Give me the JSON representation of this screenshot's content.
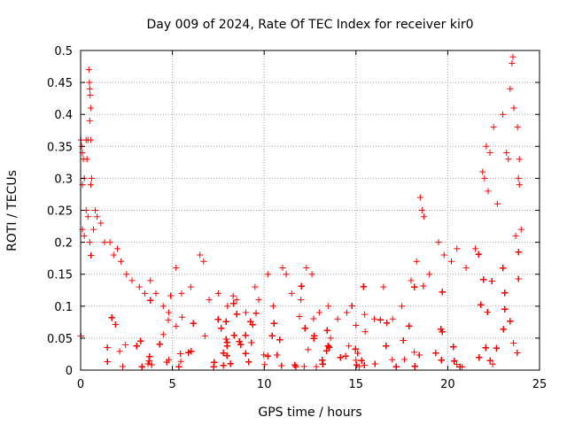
{
  "chart_data": {
    "type": "scatter",
    "title": "Day 009 of 2024, Rate Of TEC Index for receiver kir0",
    "xlabel": "GPS time / hours",
    "ylabel": "ROTI / TECUs",
    "xlim": [
      0,
      25
    ],
    "ylim": [
      0,
      0.5
    ],
    "xticks": [
      0,
      5,
      10,
      15,
      20,
      25
    ],
    "xtick_labels": [
      "0",
      "5",
      "10",
      "15",
      "20",
      "25"
    ],
    "yticks": [
      0,
      0.05,
      0.1,
      0.15,
      0.2,
      0.25,
      0.3,
      0.35,
      0.4,
      0.45,
      0.5
    ],
    "ytick_labels": [
      "0",
      "0.05",
      "0.1",
      "0.15",
      "0.2",
      "0.25",
      "0.3",
      "0.35",
      "0.4",
      "0.45",
      "0.5"
    ],
    "grid": true,
    "marker": "plus",
    "color": "#ff0000",
    "series": [
      {
        "name": "ROTI",
        "points": [
          [
            0.02,
            0.36
          ],
          [
            0.05,
            0.35
          ],
          [
            0.1,
            0.34
          ],
          [
            0.15,
            0.33
          ],
          [
            0.3,
            0.36
          ],
          [
            0.35,
            0.33
          ],
          [
            0.45,
            0.47
          ],
          [
            0.48,
            0.45
          ],
          [
            0.5,
            0.44
          ],
          [
            0.52,
            0.43
          ],
          [
            0.55,
            0.41
          ],
          [
            0.5,
            0.39
          ],
          [
            0.4,
            0.36
          ],
          [
            0.55,
            0.36
          ],
          [
            0.2,
            0.3
          ],
          [
            0.1,
            0.29
          ],
          [
            0.6,
            0.3
          ],
          [
            0.55,
            0.29
          ],
          [
            0.3,
            0.25
          ],
          [
            0.4,
            0.24
          ],
          [
            0.8,
            0.25
          ],
          [
            0.9,
            0.24
          ],
          [
            1.1,
            0.23
          ],
          [
            1.3,
            0.2
          ],
          [
            0.1,
            0.22
          ],
          [
            0.2,
            0.21
          ],
          [
            0.5,
            0.2
          ],
          [
            0.7,
            0.22
          ],
          [
            1.6,
            0.2
          ],
          [
            1.8,
            0.18
          ],
          [
            2.0,
            0.19
          ],
          [
            2.2,
            0.17
          ],
          [
            2.5,
            0.15
          ],
          [
            2.8,
            0.14
          ],
          [
            3.2,
            0.13
          ],
          [
            3.5,
            0.12
          ],
          [
            3.8,
            0.14
          ],
          [
            4.1,
            0.12
          ],
          [
            4.5,
            0.1
          ],
          [
            4.8,
            0.09
          ],
          [
            5.2,
            0.16
          ],
          [
            5.5,
            0.12
          ],
          [
            6.0,
            0.13
          ],
          [
            6.5,
            0.18
          ],
          [
            6.7,
            0.17
          ],
          [
            7.0,
            0.11
          ],
          [
            7.5,
            0.12
          ],
          [
            8.0,
            0.1
          ],
          [
            8.5,
            0.11
          ],
          [
            9.0,
            0.09
          ],
          [
            9.5,
            0.13
          ],
          [
            9.7,
            0.11
          ],
          [
            10.2,
            0.15
          ],
          [
            10.5,
            0.1
          ],
          [
            11.0,
            0.16
          ],
          [
            11.2,
            0.15
          ],
          [
            11.5,
            0.12
          ],
          [
            12.0,
            0.11
          ],
          [
            12.3,
            0.16
          ],
          [
            12.6,
            0.15
          ],
          [
            13.0,
            0.09
          ],
          [
            13.5,
            0.1
          ],
          [
            14.0,
            0.08
          ],
          [
            14.5,
            0.09
          ],
          [
            15.0,
            0.07
          ],
          [
            15.5,
            0.06
          ],
          [
            16.0,
            0.08
          ],
          [
            16.5,
            0.13
          ],
          [
            17.0,
            0.08
          ],
          [
            17.5,
            0.1
          ],
          [
            18.0,
            0.14
          ],
          [
            18.3,
            0.17
          ],
          [
            18.5,
            0.27
          ],
          [
            18.6,
            0.25
          ],
          [
            18.7,
            0.24
          ],
          [
            19.0,
            0.15
          ],
          [
            19.5,
            0.2
          ],
          [
            19.8,
            0.18
          ],
          [
            20.2,
            0.17
          ],
          [
            20.5,
            0.19
          ],
          [
            21.0,
            0.16
          ],
          [
            21.5,
            0.19
          ],
          [
            21.9,
            0.31
          ],
          [
            22.0,
            0.3
          ],
          [
            22.1,
            0.35
          ],
          [
            22.3,
            0.34
          ],
          [
            22.5,
            0.38
          ],
          [
            22.2,
            0.28
          ],
          [
            22.7,
            0.26
          ],
          [
            23.0,
            0.4
          ],
          [
            23.2,
            0.34
          ],
          [
            23.3,
            0.33
          ],
          [
            23.4,
            0.44
          ],
          [
            23.5,
            0.48
          ],
          [
            23.55,
            0.49
          ],
          [
            23.6,
            0.41
          ],
          [
            23.8,
            0.38
          ],
          [
            23.9,
            0.33
          ],
          [
            23.85,
            0.3
          ],
          [
            23.9,
            0.29
          ],
          [
            24.0,
            0.22
          ],
          [
            23.7,
            0.21
          ]
        ]
      }
    ]
  }
}
